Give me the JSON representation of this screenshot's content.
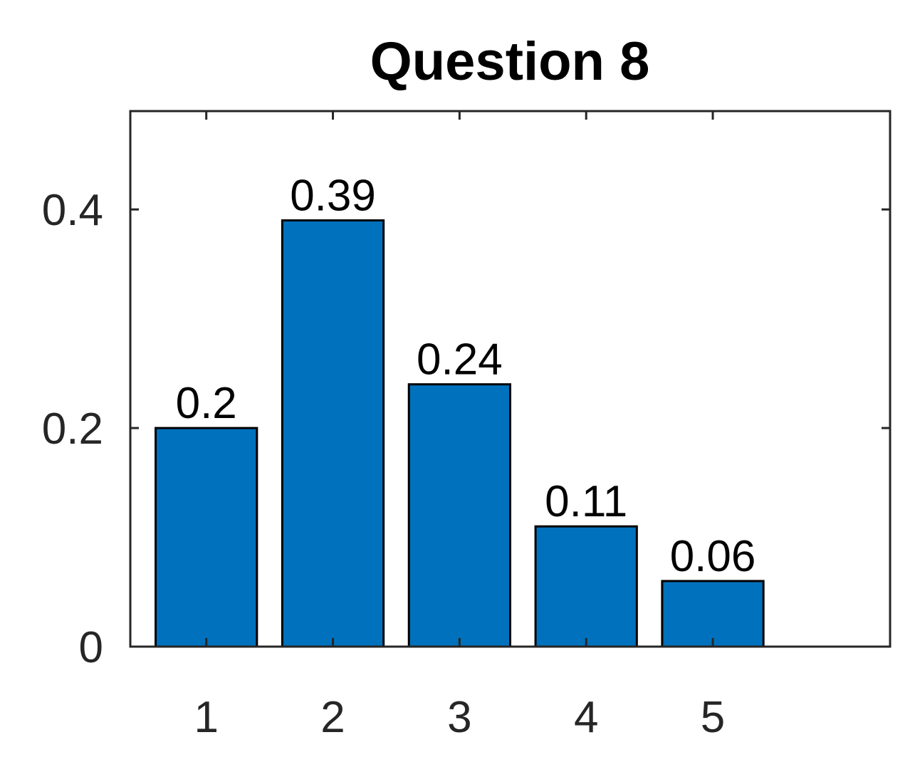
{
  "chart_data": {
    "type": "bar",
    "title": "Question 8",
    "xlabel": "",
    "ylabel": "",
    "categories": [
      "1",
      "2",
      "3",
      "4",
      "5"
    ],
    "values": [
      0.2,
      0.39,
      0.24,
      0.11,
      0.06
    ],
    "data_labels": [
      "0.2",
      "0.39",
      "0.24",
      "0.11",
      "0.06"
    ],
    "xlim": [
      0.4,
      6.4
    ],
    "ylim": [
      0,
      0.49
    ],
    "yticks": [
      0,
      0.2,
      0.4
    ],
    "ytick_labels": [
      "0",
      "0.2",
      "0.4"
    ],
    "grid": false,
    "bar_color": "#0072BD",
    "edge_color": "#000000",
    "axis_color": "#262626"
  }
}
